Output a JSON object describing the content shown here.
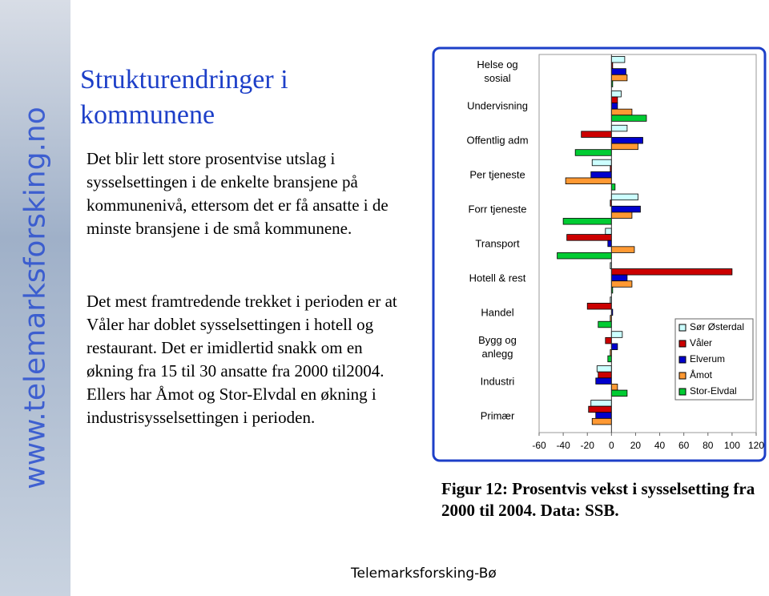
{
  "slide": {
    "title": "Strukturendringer i kommunene",
    "paragraphs": [
      "Det blir lett store prosentvise utslag i sysselsettingen i de enkelte bransjene på kommunenivå, ettersom det er få ansatte i de minste bransjene i de små kommunene.",
      "Det mest framtredende trekket i perioden er at Våler har doblet sysselsettingen i hotell og restaurant. Det er imidlertid snakk om en økning fra 15 til 30 ansatte fra 2000 til2004. Ellers har Åmot og Stor-Elvdal en økning i industrisysselsettingen i perioden."
    ],
    "sidebar": "www.telemarksforsking.no",
    "caption": "Figur 12: Prosentvis vekst i sysselsetting fra 2000 til 2004.  Data: SSB.",
    "footer": "Telemarksforsking-Bø"
  },
  "chart_data": {
    "type": "hbar",
    "categories": [
      "Helse og\nsosial",
      "Undervisning",
      "Offentlig adm",
      "Per tjeneste",
      "Forr tjeneste",
      "Transport",
      "Hotell & rest",
      "Handel",
      "Bygg og\nanlegg",
      "Industri",
      "Primær"
    ],
    "series": [
      {
        "name": "Sør Østerdal",
        "color": "#ccffff",
        "values": [
          11,
          8,
          13,
          -16,
          22,
          -5,
          -1,
          -1,
          9,
          -12,
          -17
        ]
      },
      {
        "name": "Våler",
        "color": "#cc0000",
        "values": [
          1,
          5,
          -25,
          -1,
          -1,
          -37,
          100,
          -20,
          -5,
          -11,
          -19
        ]
      },
      {
        "name": "Elverum",
        "color": "#0000cc",
        "values": [
          12,
          5,
          26,
          -17,
          24,
          -3,
          13,
          1,
          5,
          -13,
          -13
        ]
      },
      {
        "name": "Åmot",
        "color": "#ff9933",
        "values": [
          13,
          17,
          22,
          -38,
          17,
          19,
          17,
          -1,
          -1,
          5,
          -16
        ]
      },
      {
        "name": "Stor-Elvdal",
        "color": "#00cc33",
        "values": [
          1,
          29,
          -30,
          3,
          -40,
          -45,
          1,
          -11,
          -3,
          13,
          0
        ]
      }
    ],
    "xlim": [
      -60,
      120
    ],
    "xticks": [
      -60,
      -40,
      -20,
      0,
      20,
      40,
      60,
      80,
      100,
      120
    ],
    "legend": "right"
  }
}
